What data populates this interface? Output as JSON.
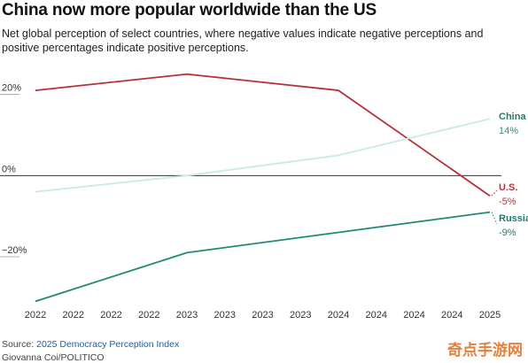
{
  "header": {
    "title": "China now more popular worldwide than the US",
    "subtitle": "Net global perception of select countries, where negative values indicate negative perceptions and positive percentages indicate positive perceptions."
  },
  "chart_data": {
    "type": "line",
    "title": "China now more popular worldwide than the US",
    "xlabel": "",
    "ylabel": "",
    "x": [
      2022,
      2023,
      2024,
      2025
    ],
    "x_tick_labels": [
      "2022",
      "2022",
      "2022",
      "2022",
      "2023",
      "2023",
      "2023",
      "2023",
      "2024",
      "2024",
      "2024",
      "2024",
      "2025"
    ],
    "y_ticks": [
      {
        "value": 20,
        "label": "20%"
      },
      {
        "value": 0,
        "label": "0%"
      },
      {
        "value": -20,
        "label": "−20%"
      }
    ],
    "ylim": [
      -32,
      28
    ],
    "grid": false,
    "zero_line": true,
    "legend": "direct-labels-right",
    "series": [
      {
        "name": "U.S.",
        "end_label": "-5%",
        "color": "#b5323c",
        "values": [
          21,
          25,
          21,
          -5
        ]
      },
      {
        "name": "China",
        "end_label": "14%",
        "color": "#c9ebe3",
        "values": [
          -4,
          0,
          5,
          14
        ]
      },
      {
        "name": "Russia",
        "end_label": "-9%",
        "color": "#1f8a76",
        "values": [
          -31,
          -19,
          -14,
          -9
        ]
      }
    ]
  },
  "footer": {
    "source_prefix": "Source: ",
    "source_link": "2025 Democracy Perception Index",
    "credit": "Giovanna Coi/POLITICO"
  },
  "watermark": {
    "text": "奇点手游网"
  }
}
